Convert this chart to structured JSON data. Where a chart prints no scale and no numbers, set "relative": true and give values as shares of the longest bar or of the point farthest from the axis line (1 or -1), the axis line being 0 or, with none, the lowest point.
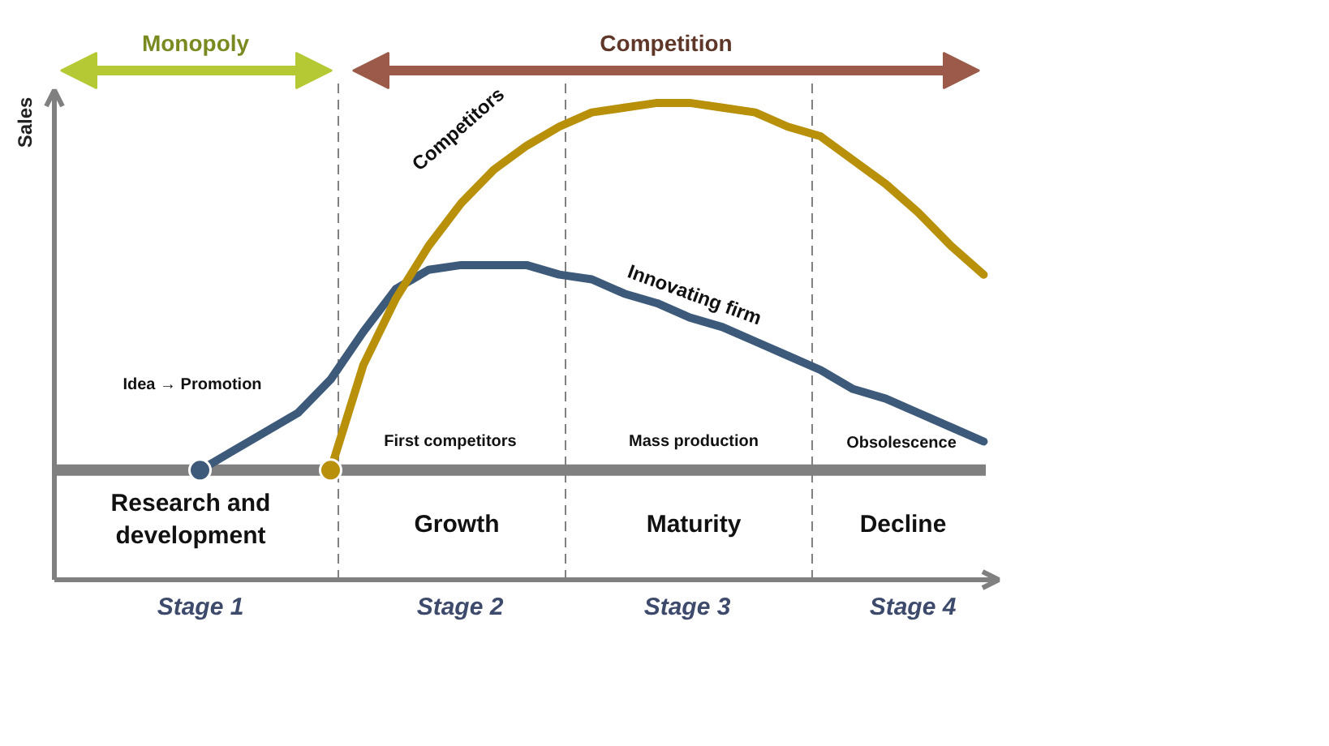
{
  "chart_data": {
    "type": "line",
    "relative": true,
    "ylabel": "Sales",
    "line_style": "solid",
    "categories": [
      null,
      null,
      null,
      null,
      null,
      null,
      null,
      null,
      null,
      null,
      null,
      null,
      null,
      null,
      null,
      null,
      null,
      null,
      null,
      null,
      null,
      null,
      null,
      null,
      null,
      null,
      null,
      null,
      null,
      null
    ],
    "series": [
      {
        "name": "Innovating firm",
        "color": "#3d5a7a",
        "values": [
          null,
          null,
          null,
          null,
          null,
          0.23,
          0.27,
          0.31,
          0.35,
          0.42,
          0.52,
          0.61,
          0.65,
          0.66,
          0.66,
          0.66,
          0.64,
          0.63,
          0.6,
          0.58,
          0.55,
          0.53,
          0.5,
          0.47,
          0.44,
          0.4,
          0.38,
          0.35,
          0.32,
          0.29
        ]
      },
      {
        "name": "Competitors",
        "color": "#b8900a",
        "values": [
          null,
          null,
          null,
          null,
          null,
          null,
          null,
          null,
          null,
          0.23,
          0.45,
          0.59,
          0.7,
          0.79,
          0.86,
          0.91,
          0.95,
          0.98,
          0.99,
          1.0,
          1.0,
          0.99,
          0.98,
          0.95,
          0.93,
          0.88,
          0.83,
          0.77,
          0.7,
          0.64
        ]
      }
    ],
    "ref_lines": [
      {
        "axis": "y",
        "value": 0.23,
        "color": "#808080"
      }
    ],
    "annotations": [
      "Monopoly",
      "Competition",
      "Idea → Promotion",
      "First competitors",
      "Mass production",
      "Obsolescence",
      "Research and\ndevelopment",
      "Growth",
      "Maturity",
      "Decline",
      "Stage 1",
      "Stage 2",
      "Stage 3",
      "Stage 4"
    ]
  }
}
